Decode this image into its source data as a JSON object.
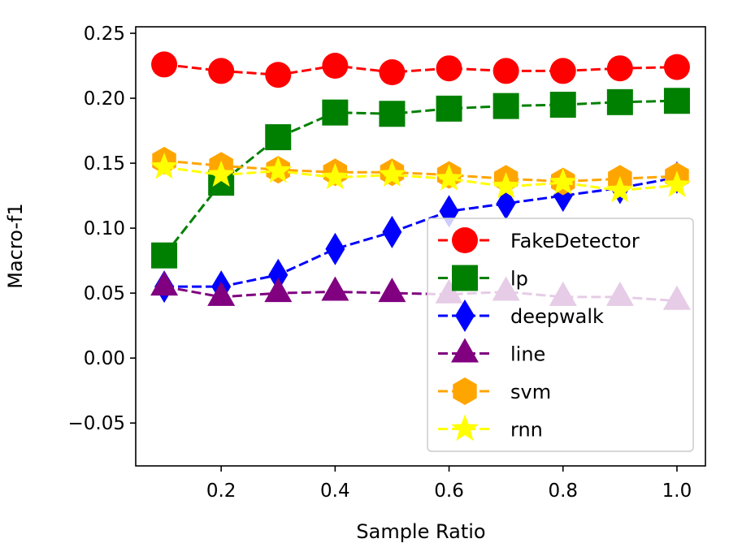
{
  "chart_data": {
    "type": "line",
    "xlabel": "Sample Ratio",
    "ylabel": "Macro-f1",
    "xlim": [
      0.05,
      1.05
    ],
    "ylim": [
      -0.083,
      0.255
    ],
    "xticks": [
      0.2,
      0.4,
      0.6,
      0.8,
      1.0
    ],
    "xtick_labels": [
      "0.2",
      "0.4",
      "0.6",
      "0.8",
      "1.0"
    ],
    "yticks": [
      -0.05,
      0.0,
      0.05,
      0.1,
      0.15,
      0.2,
      0.25
    ],
    "ytick_labels": [
      "−0.05",
      "0.00",
      "0.05",
      "0.10",
      "0.15",
      "0.20",
      "0.25"
    ],
    "legend_position": "lower-right",
    "x": [
      0.1,
      0.2,
      0.3,
      0.4,
      0.5,
      0.6,
      0.7,
      0.8,
      0.9,
      1.0
    ],
    "series": [
      {
        "name": "FakeDetector",
        "color": "#ff0000",
        "marker": "circle",
        "values": [
          0.226,
          0.221,
          0.218,
          0.225,
          0.22,
          0.223,
          0.221,
          0.221,
          0.223,
          0.224
        ]
      },
      {
        "name": "lp",
        "color": "#008000",
        "marker": "square",
        "values": [
          0.079,
          0.135,
          0.17,
          0.189,
          0.188,
          0.192,
          0.194,
          0.195,
          0.197,
          0.198
        ]
      },
      {
        "name": "deepwalk",
        "color": "#0000ff",
        "marker": "thin-diamond",
        "values": [
          0.055,
          0.055,
          0.064,
          0.084,
          0.097,
          0.113,
          0.119,
          0.125,
          0.131,
          0.139
        ]
      },
      {
        "name": "line",
        "color": "#800080",
        "marker": "triangle",
        "values": [
          0.055,
          0.047,
          0.05,
          0.051,
          0.05,
          0.049,
          0.051,
          0.047,
          0.047,
          0.044
        ]
      },
      {
        "name": "svm",
        "color": "#ffa500",
        "marker": "hexagon",
        "values": [
          0.152,
          0.148,
          0.145,
          0.143,
          0.143,
          0.141,
          0.138,
          0.136,
          0.138,
          0.14
        ]
      },
      {
        "name": "rnn",
        "color": "#ffff00",
        "marker": "star",
        "values": [
          0.147,
          0.141,
          0.144,
          0.139,
          0.141,
          0.138,
          0.132,
          0.135,
          0.129,
          0.133
        ]
      }
    ]
  }
}
